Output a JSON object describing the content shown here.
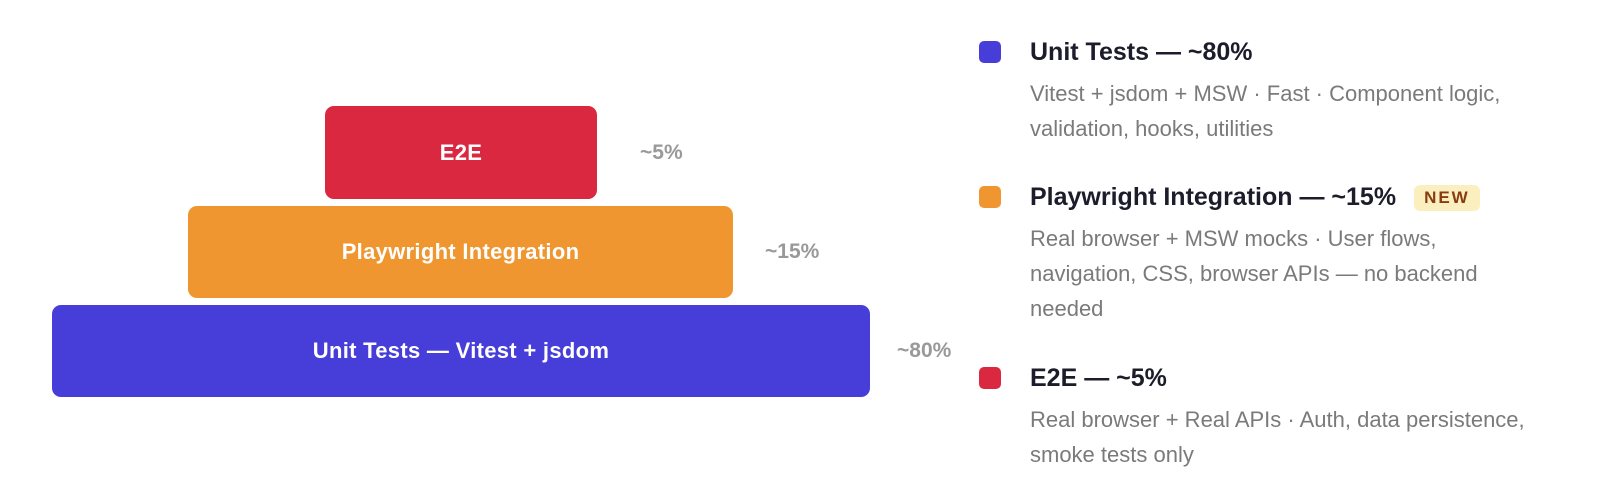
{
  "pyramid": [
    {
      "label": "E2E",
      "share": "~5%",
      "color": "#d9283f"
    },
    {
      "label": "Playwright Integration",
      "share": "~15%",
      "color": "#f09630"
    },
    {
      "label": "Unit Tests — Vitest + jsdom",
      "share": "~80%",
      "color": "#473ed9"
    }
  ],
  "legend": [
    {
      "title": "Unit Tests — ~80%",
      "description": "Vitest + jsdom + MSW · Fast · Component logic, validation, hooks, utilities",
      "color": "#473ed9"
    },
    {
      "title": "Playwright Integration — ~15%",
      "badge": "NEW",
      "description": "Real browser + MSW mocks · User flows, navigation, CSS, browser APIs — no backend needed",
      "color": "#f09630"
    },
    {
      "title": "E2E — ~5%",
      "description": "Real browser + Real APIs · Auth, data persistence, smoke tests only",
      "color": "#d9283f"
    }
  ]
}
